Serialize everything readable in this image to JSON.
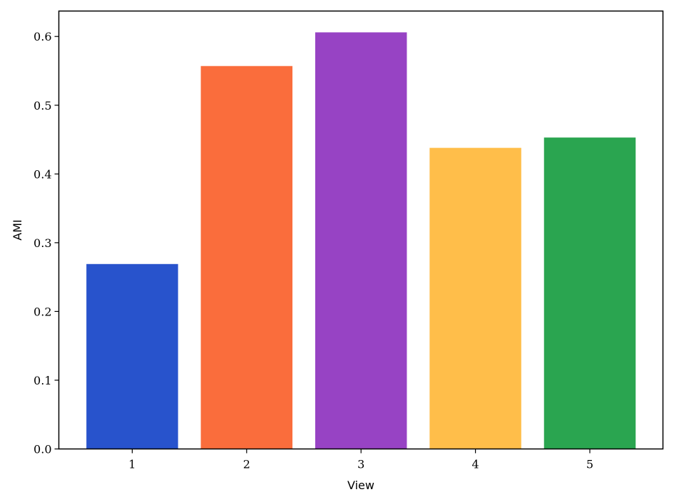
{
  "chart_data": {
    "type": "bar",
    "title": "",
    "xlabel": "View",
    "ylabel": "AMI",
    "categories": [
      "1",
      "2",
      "3",
      "4",
      "5"
    ],
    "values": [
      0.269,
      0.557,
      0.606,
      0.438,
      0.453
    ],
    "colors": [
      "#2853cc",
      "#fa6d3c",
      "#9743c4",
      "#ffbe4a",
      "#2aa550"
    ],
    "ylim": [
      0.0,
      0.637
    ],
    "yticks": [
      0.0,
      0.1,
      0.2,
      0.3,
      0.4,
      0.5,
      0.6
    ],
    "ytick_labels": [
      "0.0",
      "0.1",
      "0.2",
      "0.3",
      "0.4",
      "0.5",
      "0.6"
    ],
    "grid": false,
    "legend": "none"
  }
}
